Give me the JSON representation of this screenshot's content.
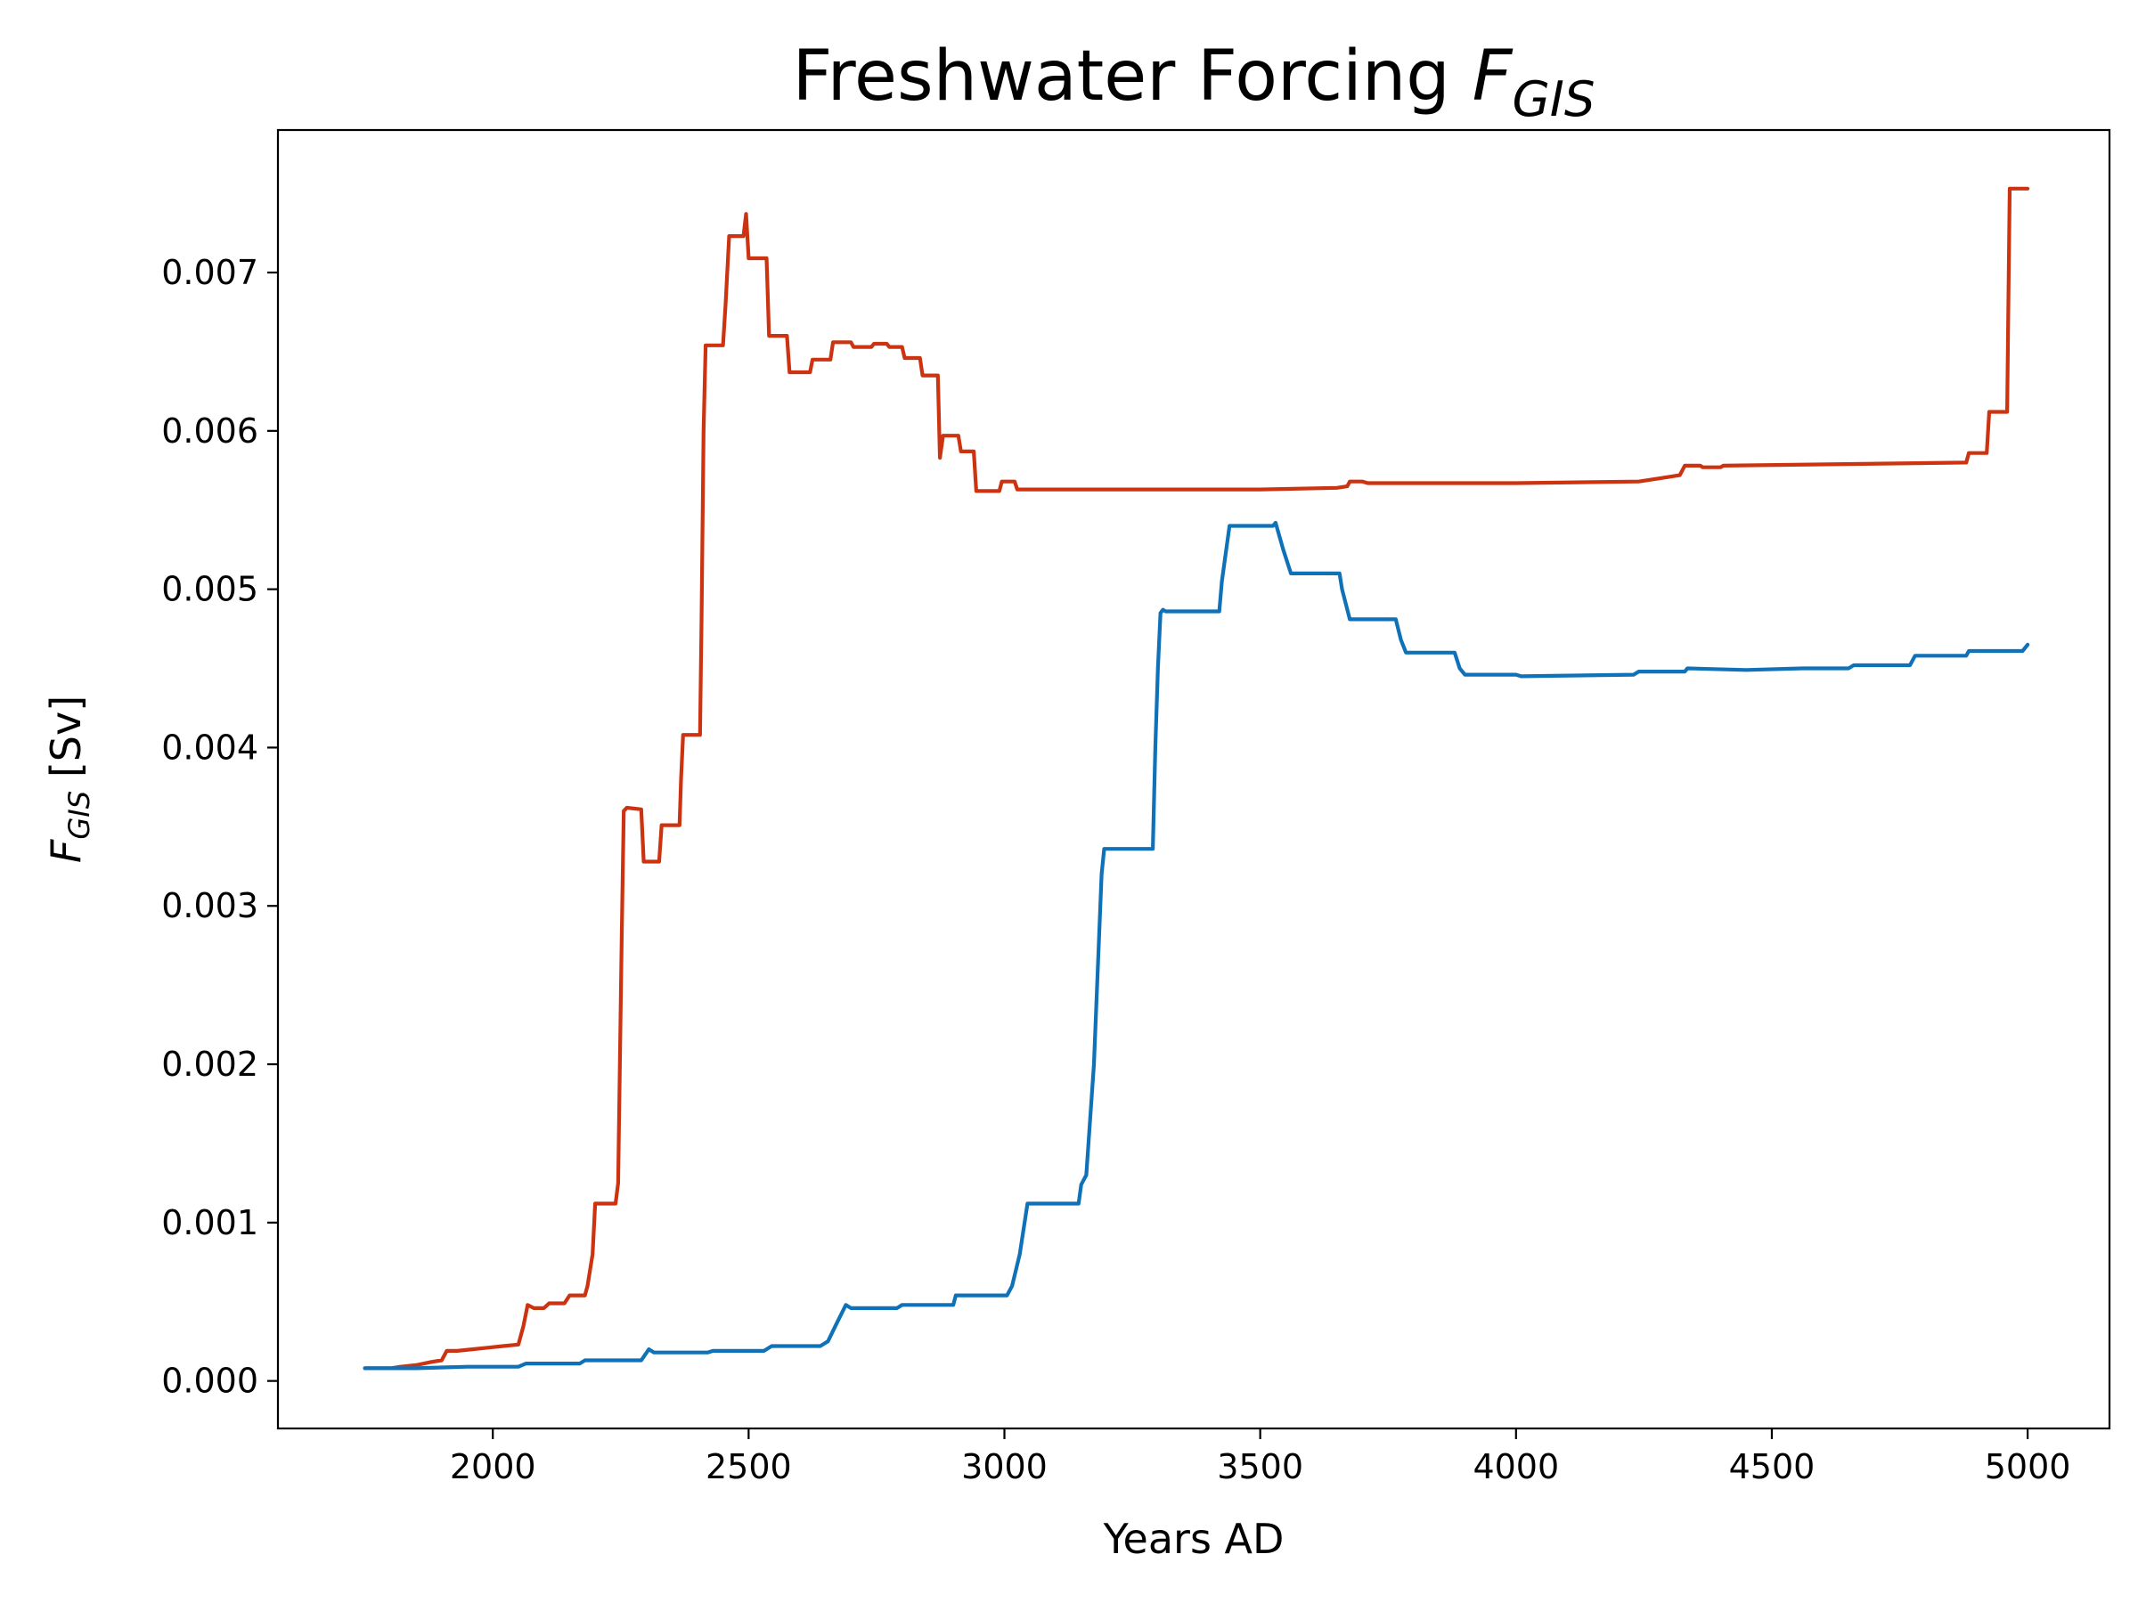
{
  "chart_data": {
    "type": "line",
    "title": {
      "main": "Freshwater Forcing ",
      "symbol": "F",
      "symbol_subscript": "GIS"
    },
    "xlabel": "Years AD",
    "ylabel": {
      "symbol": "F",
      "symbol_subscript": "GIS",
      "unit": " [Sv]"
    },
    "xlim": [
      1580,
      5160
    ],
    "ylim": [
      -0.0003,
      0.0079
    ],
    "xticks": [
      2000,
      2500,
      3000,
      3500,
      4000,
      4500,
      5000
    ],
    "xtick_labels": [
      "2000",
      "2500",
      "3000",
      "3500",
      "4000",
      "4500",
      "5000"
    ],
    "yticks": [
      0.0,
      0.001,
      0.002,
      0.003,
      0.004,
      0.005,
      0.006,
      0.007
    ],
    "ytick_labels": [
      "0.000",
      "0.001",
      "0.002",
      "0.003",
      "0.004",
      "0.005",
      "0.006",
      "0.007"
    ],
    "grid": false,
    "legend": "none",
    "series": [
      {
        "color": "#cc3311",
        "points": [
          [
            1750,
            8e-05
          ],
          [
            1800,
            8e-05
          ],
          [
            1820,
            9e-05
          ],
          [
            1850,
            0.0001
          ],
          [
            1880,
            0.00012
          ],
          [
            1900,
            0.00013
          ],
          [
            1910,
            0.00019
          ],
          [
            1930,
            0.00019
          ],
          [
            1960,
            0.0002
          ],
          [
            1990,
            0.00021
          ],
          [
            2020,
            0.00022
          ],
          [
            2050,
            0.00023
          ],
          [
            2060,
            0.00035
          ],
          [
            2068,
            0.00048
          ],
          [
            2080,
            0.00046
          ],
          [
            2100,
            0.00046
          ],
          [
            2110,
            0.00049
          ],
          [
            2140,
            0.00049
          ],
          [
            2150,
            0.00054
          ],
          [
            2180,
            0.00054
          ],
          [
            2185,
            0.0006
          ],
          [
            2195,
            0.0008
          ],
          [
            2200,
            0.00112
          ],
          [
            2240,
            0.00112
          ],
          [
            2245,
            0.00125
          ],
          [
            2252,
            0.0028
          ],
          [
            2256,
            0.0036
          ],
          [
            2262,
            0.00362
          ],
          [
            2290,
            0.00361
          ],
          [
            2295,
            0.00328
          ],
          [
            2325,
            0.00328
          ],
          [
            2330,
            0.00351
          ],
          [
            2365,
            0.00351
          ],
          [
            2368,
            0.0038
          ],
          [
            2372,
            0.00408
          ],
          [
            2405,
            0.00408
          ],
          [
            2408,
            0.0048
          ],
          [
            2412,
            0.006
          ],
          [
            2416,
            0.00654
          ],
          [
            2450,
            0.00654
          ],
          [
            2455,
            0.0068
          ],
          [
            2462,
            0.00723
          ],
          [
            2490,
            0.00723
          ],
          [
            2495,
            0.00737
          ],
          [
            2500,
            0.00709
          ],
          [
            2535,
            0.00709
          ],
          [
            2540,
            0.0066
          ],
          [
            2575,
            0.0066
          ],
          [
            2580,
            0.00637
          ],
          [
            2620,
            0.00637
          ],
          [
            2625,
            0.00645
          ],
          [
            2660,
            0.00645
          ],
          [
            2665,
            0.00656
          ],
          [
            2700,
            0.00656
          ],
          [
            2705,
            0.00653
          ],
          [
            2740,
            0.00653
          ],
          [
            2745,
            0.00655
          ],
          [
            2770,
            0.00655
          ],
          [
            2775,
            0.00653
          ],
          [
            2800,
            0.00653
          ],
          [
            2805,
            0.00646
          ],
          [
            2835,
            0.00646
          ],
          [
            2840,
            0.00635
          ],
          [
            2870,
            0.00635
          ],
          [
            2874,
            0.00583
          ],
          [
            2880,
            0.00597
          ],
          [
            2910,
            0.00597
          ],
          [
            2915,
            0.00587
          ],
          [
            2940,
            0.00587
          ],
          [
            2945,
            0.00562
          ],
          [
            2990,
            0.00562
          ],
          [
            2995,
            0.00568
          ],
          [
            3020,
            0.00568
          ],
          [
            3025,
            0.00563
          ],
          [
            3100,
            0.00563
          ],
          [
            3500,
            0.00563
          ],
          [
            3650,
            0.00564
          ],
          [
            3670,
            0.00565
          ],
          [
            3675,
            0.00568
          ],
          [
            3700,
            0.00568
          ],
          [
            3710,
            0.00567
          ],
          [
            4000,
            0.00567
          ],
          [
            4240,
            0.00568
          ],
          [
            4280,
            0.0057
          ],
          [
            4320,
            0.00572
          ],
          [
            4330,
            0.00578
          ],
          [
            4360,
            0.00578
          ],
          [
            4365,
            0.00577
          ],
          [
            4400,
            0.00577
          ],
          [
            4405,
            0.00578
          ],
          [
            4880,
            0.0058
          ],
          [
            4885,
            0.00586
          ],
          [
            4920,
            0.00586
          ],
          [
            4925,
            0.00612
          ],
          [
            4960,
            0.00612
          ],
          [
            4965,
            0.00753
          ],
          [
            5000,
            0.00753
          ]
        ]
      },
      {
        "color": "#0f72b8",
        "points": [
          [
            1750,
            8e-05
          ],
          [
            1850,
            8e-05
          ],
          [
            1950,
            9e-05
          ],
          [
            2050,
            9e-05
          ],
          [
            2065,
            0.00011
          ],
          [
            2170,
            0.00011
          ],
          [
            2180,
            0.00013
          ],
          [
            2290,
            0.00013
          ],
          [
            2305,
            0.0002
          ],
          [
            2315,
            0.00018
          ],
          [
            2420,
            0.00018
          ],
          [
            2430,
            0.00019
          ],
          [
            2530,
            0.00019
          ],
          [
            2545,
            0.00022
          ],
          [
            2640,
            0.00022
          ],
          [
            2655,
            0.00025
          ],
          [
            2670,
            0.00035
          ],
          [
            2690,
            0.00048
          ],
          [
            2700,
            0.00046
          ],
          [
            2790,
            0.00046
          ],
          [
            2800,
            0.00048
          ],
          [
            2900,
            0.00048
          ],
          [
            2905,
            0.00054
          ],
          [
            3005,
            0.00054
          ],
          [
            3015,
            0.0006
          ],
          [
            3030,
            0.0008
          ],
          [
            3045,
            0.00112
          ],
          [
            3145,
            0.00112
          ],
          [
            3150,
            0.00124
          ],
          [
            3160,
            0.0013
          ],
          [
            3175,
            0.002
          ],
          [
            3190,
            0.0032
          ],
          [
            3195,
            0.00336
          ],
          [
            3290,
            0.00336
          ],
          [
            3295,
            0.004
          ],
          [
            3300,
            0.0045
          ],
          [
            3305,
            0.00485
          ],
          [
            3310,
            0.00487
          ],
          [
            3315,
            0.00486
          ],
          [
            3420,
            0.00486
          ],
          [
            3425,
            0.00505
          ],
          [
            3440,
            0.0054
          ],
          [
            3525,
            0.0054
          ],
          [
            3530,
            0.00542
          ],
          [
            3545,
            0.00525
          ],
          [
            3560,
            0.0051
          ],
          [
            3655,
            0.0051
          ],
          [
            3660,
            0.005
          ],
          [
            3675,
            0.00481
          ],
          [
            3765,
            0.00481
          ],
          [
            3775,
            0.00468
          ],
          [
            3785,
            0.0046
          ],
          [
            3880,
            0.0046
          ],
          [
            3890,
            0.0045
          ],
          [
            3900,
            0.00446
          ],
          [
            4000,
            0.00446
          ],
          [
            4010,
            0.00445
          ],
          [
            4230,
            0.00446
          ],
          [
            4240,
            0.00448
          ],
          [
            4330,
            0.00448
          ],
          [
            4335,
            0.0045
          ],
          [
            4450,
            0.00449
          ],
          [
            4560,
            0.0045
          ],
          [
            4650,
            0.0045
          ],
          [
            4660,
            0.00452
          ],
          [
            4770,
            0.00452
          ],
          [
            4780,
            0.00458
          ],
          [
            4880,
            0.00458
          ],
          [
            4885,
            0.00461
          ],
          [
            4990,
            0.00461
          ],
          [
            5000,
            0.00465
          ]
        ]
      }
    ]
  }
}
